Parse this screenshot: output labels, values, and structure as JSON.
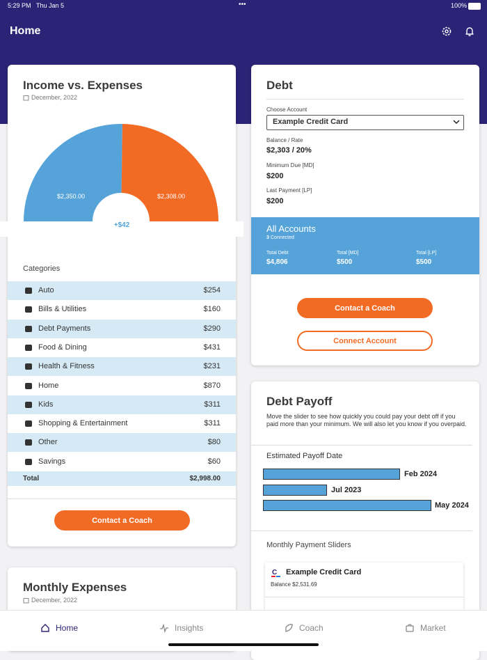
{
  "status_bar": {
    "time": "5:29 PM",
    "date": "Thu Jan 5",
    "battery": "100%"
  },
  "header": {
    "title": "Home"
  },
  "income_card": {
    "title": "Income vs. Expenses",
    "date": "December, 2022",
    "chart": {
      "type": "pie",
      "segments": [
        {
          "label": "$2,350.00",
          "value": 2350,
          "color": "#55a3d8"
        },
        {
          "label": "$2,308.00",
          "value": 2308,
          "color": "#f26b25"
        }
      ],
      "net": "+$42"
    },
    "categories_label": "Categories",
    "categories": [
      {
        "name": "Auto",
        "amount": "$254"
      },
      {
        "name": "Bills & Utilities",
        "amount": "$160"
      },
      {
        "name": "Debt Payments",
        "amount": "$290"
      },
      {
        "name": "Food & Dining",
        "amount": "$431"
      },
      {
        "name": "Health & Fitness",
        "amount": "$231"
      },
      {
        "name": "Home",
        "amount": "$870"
      },
      {
        "name": "Kids",
        "amount": "$311"
      },
      {
        "name": "Shopping & Entertainment",
        "amount": "$311"
      },
      {
        "name": "Other",
        "amount": "$80"
      },
      {
        "name": "Savings",
        "amount": "$60"
      }
    ],
    "total": {
      "label": "Total",
      "amount": "$2,998.00"
    },
    "button": "Contact a Coach"
  },
  "monthly_expenses_card": {
    "title": "Monthly Expenses",
    "date": "December, 2022"
  },
  "debt_card": {
    "title": "Debt",
    "choose_label": "Choose Account",
    "selected_account": "Example Credit Card",
    "fields": [
      {
        "label": "Balance / Rate",
        "value": "$2,303 / 20%"
      },
      {
        "label": "Minimum Due [MD]",
        "value": "$200"
      },
      {
        "label": "Last Payment [LP]",
        "value": "$200"
      }
    ],
    "all_accounts": {
      "title": "All Accounts",
      "count": "3",
      "count_label": "Connected",
      "totals": [
        {
          "label": "Total Debt",
          "value": "$4,806"
        },
        {
          "label": "Total [MD]",
          "value": "$500"
        },
        {
          "label": "Total [LP]",
          "value": "$500"
        }
      ]
    },
    "buttons": [
      "Contact a Coach",
      "Connect Account"
    ]
  },
  "debt_payoff_card": {
    "title": "Debt Payoff",
    "description": "Move the slider to see how quickly you could pay your debt off if you paid more than your minimum. We will also let you know if you overpaid.",
    "estimated_label": "Estimated Payoff Date",
    "payoff_dates": [
      "Feb 2024",
      "Jul 2023",
      "May 2024"
    ],
    "sliders_label": "Monthly Payment Sliders",
    "account": {
      "name": "Example Credit Card",
      "balance": "Balance $2,531.69"
    }
  },
  "tab_bar": {
    "items": [
      "Home",
      "Insights",
      "Coach",
      "Market"
    ]
  }
}
